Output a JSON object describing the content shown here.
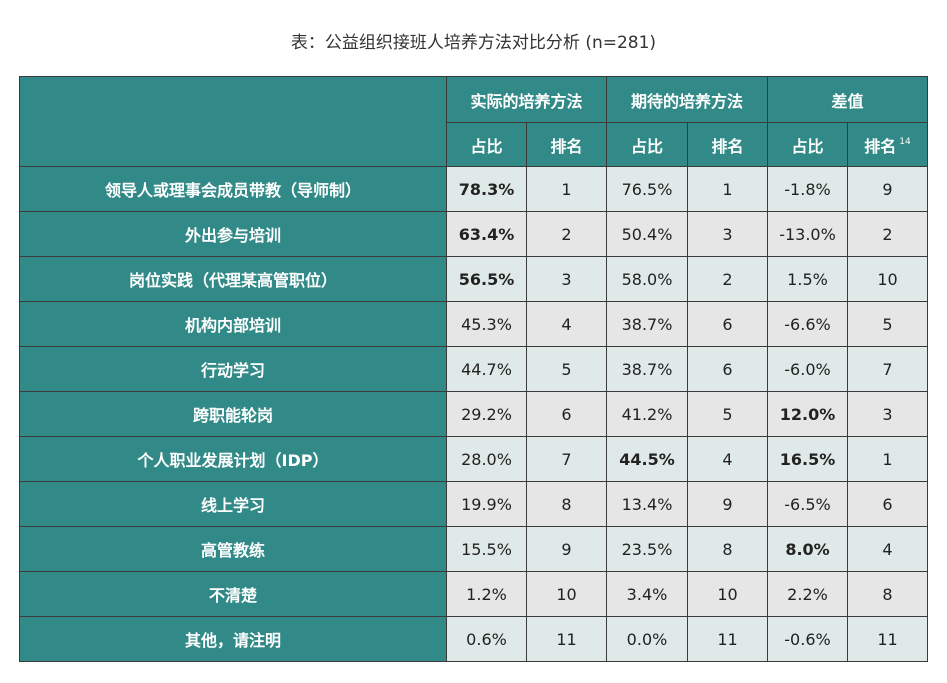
{
  "title": "表：公益组织接班人培养方法对比分析 (n=281)",
  "header": {
    "group_actual": "实际的培养方法",
    "group_expected": "期待的培养方法",
    "group_diff": "差值",
    "share": "占比",
    "rank": "排名",
    "footnote": "14"
  },
  "rows": [
    {
      "label": "领导人或理事会成员带教（导师制）",
      "actual_share": "78.3%",
      "actual_rank": "1",
      "expected_share": "76.5%",
      "expected_rank": "1",
      "diff_share": "-1.8%",
      "diff_rank": "9"
    },
    {
      "label": "外出参与培训",
      "actual_share": "63.4%",
      "actual_rank": "2",
      "expected_share": "50.4%",
      "expected_rank": "3",
      "diff_share": "-13.0%",
      "diff_rank": "2"
    },
    {
      "label": "岗位实践（代理某高管职位）",
      "actual_share": "56.5%",
      "actual_rank": "3",
      "expected_share": "58.0%",
      "expected_rank": "2",
      "diff_share": "1.5%",
      "diff_rank": "10"
    },
    {
      "label": "机构内部培训",
      "actual_share": "45.3%",
      "actual_rank": "4",
      "expected_share": "38.7%",
      "expected_rank": "6",
      "diff_share": "-6.6%",
      "diff_rank": "5"
    },
    {
      "label": "行动学习",
      "actual_share": "44.7%",
      "actual_rank": "5",
      "expected_share": "38.7%",
      "expected_rank": "6",
      "diff_share": "-6.0%",
      "diff_rank": "7"
    },
    {
      "label": "跨职能轮岗",
      "actual_share": "29.2%",
      "actual_rank": "6",
      "expected_share": "41.2%",
      "expected_rank": "5",
      "diff_share": "12.0%",
      "diff_rank": "3"
    },
    {
      "label": "个人职业发展计划（IDP）",
      "actual_share": "28.0%",
      "actual_rank": "7",
      "expected_share": "44.5%",
      "expected_rank": "4",
      "diff_share": "16.5%",
      "diff_rank": "1"
    },
    {
      "label": "线上学习",
      "actual_share": "19.9%",
      "actual_rank": "8",
      "expected_share": "13.4%",
      "expected_rank": "9",
      "diff_share": "-6.5%",
      "diff_rank": "6"
    },
    {
      "label": "高管教练",
      "actual_share": "15.5%",
      "actual_rank": "9",
      "expected_share": "23.5%",
      "expected_rank": "8",
      "diff_share": "8.0%",
      "diff_rank": "4"
    },
    {
      "label": "不清楚",
      "actual_share": "1.2%",
      "actual_rank": "10",
      "expected_share": "3.4%",
      "expected_rank": "10",
      "diff_share": "2.2%",
      "diff_rank": "8"
    },
    {
      "label": "其他，请注明",
      "actual_share": "0.6%",
      "actual_rank": "11",
      "expected_share": "0.0%",
      "expected_rank": "11",
      "diff_share": "-0.6%",
      "diff_rank": "11"
    }
  ],
  "colors": {
    "header_teal": "#318a87",
    "row_tint_odd": "#dfeae8",
    "row_tint_even": "#e6e6e6",
    "border": "#3b3b3b"
  }
}
